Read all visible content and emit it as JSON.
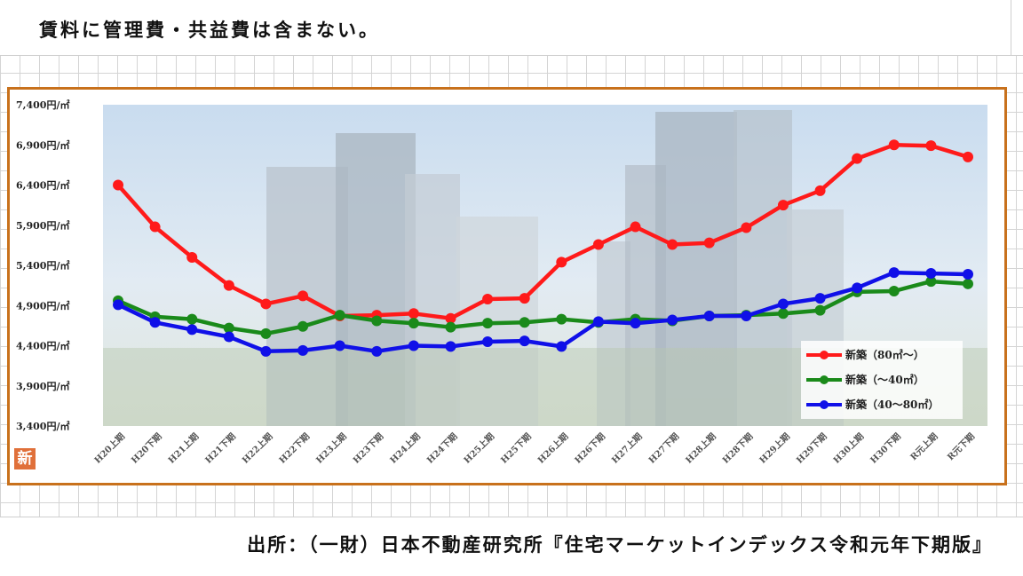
{
  "note": "賃料に管理費・共益費は含まない。",
  "source": "出所：（一財）日本不動産研究所『住宅マーケットインデックス令和元年下期版』",
  "badge": "新",
  "chart_data": {
    "type": "line",
    "categories": [
      "H20上期",
      "H20下期",
      "H21上期",
      "H21下期",
      "H22上期",
      "H22下期",
      "H23上期",
      "H23下期",
      "H24上期",
      "H24下期",
      "H25上期",
      "H25下期",
      "H26上期",
      "H26下期",
      "H27上期",
      "H27下期",
      "H28上期",
      "H28下期",
      "H29上期",
      "H29下期",
      "H30上期",
      "H30下期",
      "R元上期",
      "R元下期"
    ],
    "ylim": [
      3400,
      7400
    ],
    "yticks": [
      3400,
      3900,
      4400,
      4900,
      5400,
      5900,
      6400,
      6900,
      7400
    ],
    "ytick_labels": [
      "3,400円/㎡",
      "3,900円/㎡",
      "4,400円/㎡",
      "4,900円/㎡",
      "5,400円/㎡",
      "5,900円/㎡",
      "6,400円/㎡",
      "6,900円/㎡",
      "7,400円/㎡"
    ],
    "legend_position": "bottom-right",
    "series": [
      {
        "name": "新築（80㎡～）",
        "color": "#ff1a1a",
        "values": [
          6400,
          5880,
          5500,
          5150,
          4920,
          5020,
          4770,
          4780,
          4800,
          4740,
          4980,
          4990,
          5440,
          5660,
          5880,
          5660,
          5680,
          5870,
          6150,
          6330,
          6730,
          6900,
          6890,
          6750
        ]
      },
      {
        "name": "新築（～40㎡）",
        "color": "#1a8a1a",
        "values": [
          4960,
          4760,
          4730,
          4620,
          4550,
          4640,
          4780,
          4710,
          4680,
          4630,
          4680,
          4690,
          4730,
          4690,
          4730,
          4710,
          4770,
          4780,
          4800,
          4840,
          5070,
          5080,
          5200,
          5170
        ]
      },
      {
        "name": "新築（40～80㎡）",
        "color": "#1010e8",
        "values": [
          4910,
          4690,
          4600,
          4510,
          4330,
          4340,
          4400,
          4330,
          4400,
          4390,
          4450,
          4460,
          4390,
          4700,
          4680,
          4720,
          4770,
          4770,
          4920,
          4990,
          5120,
          5310,
          5300,
          5290
        ]
      }
    ]
  }
}
